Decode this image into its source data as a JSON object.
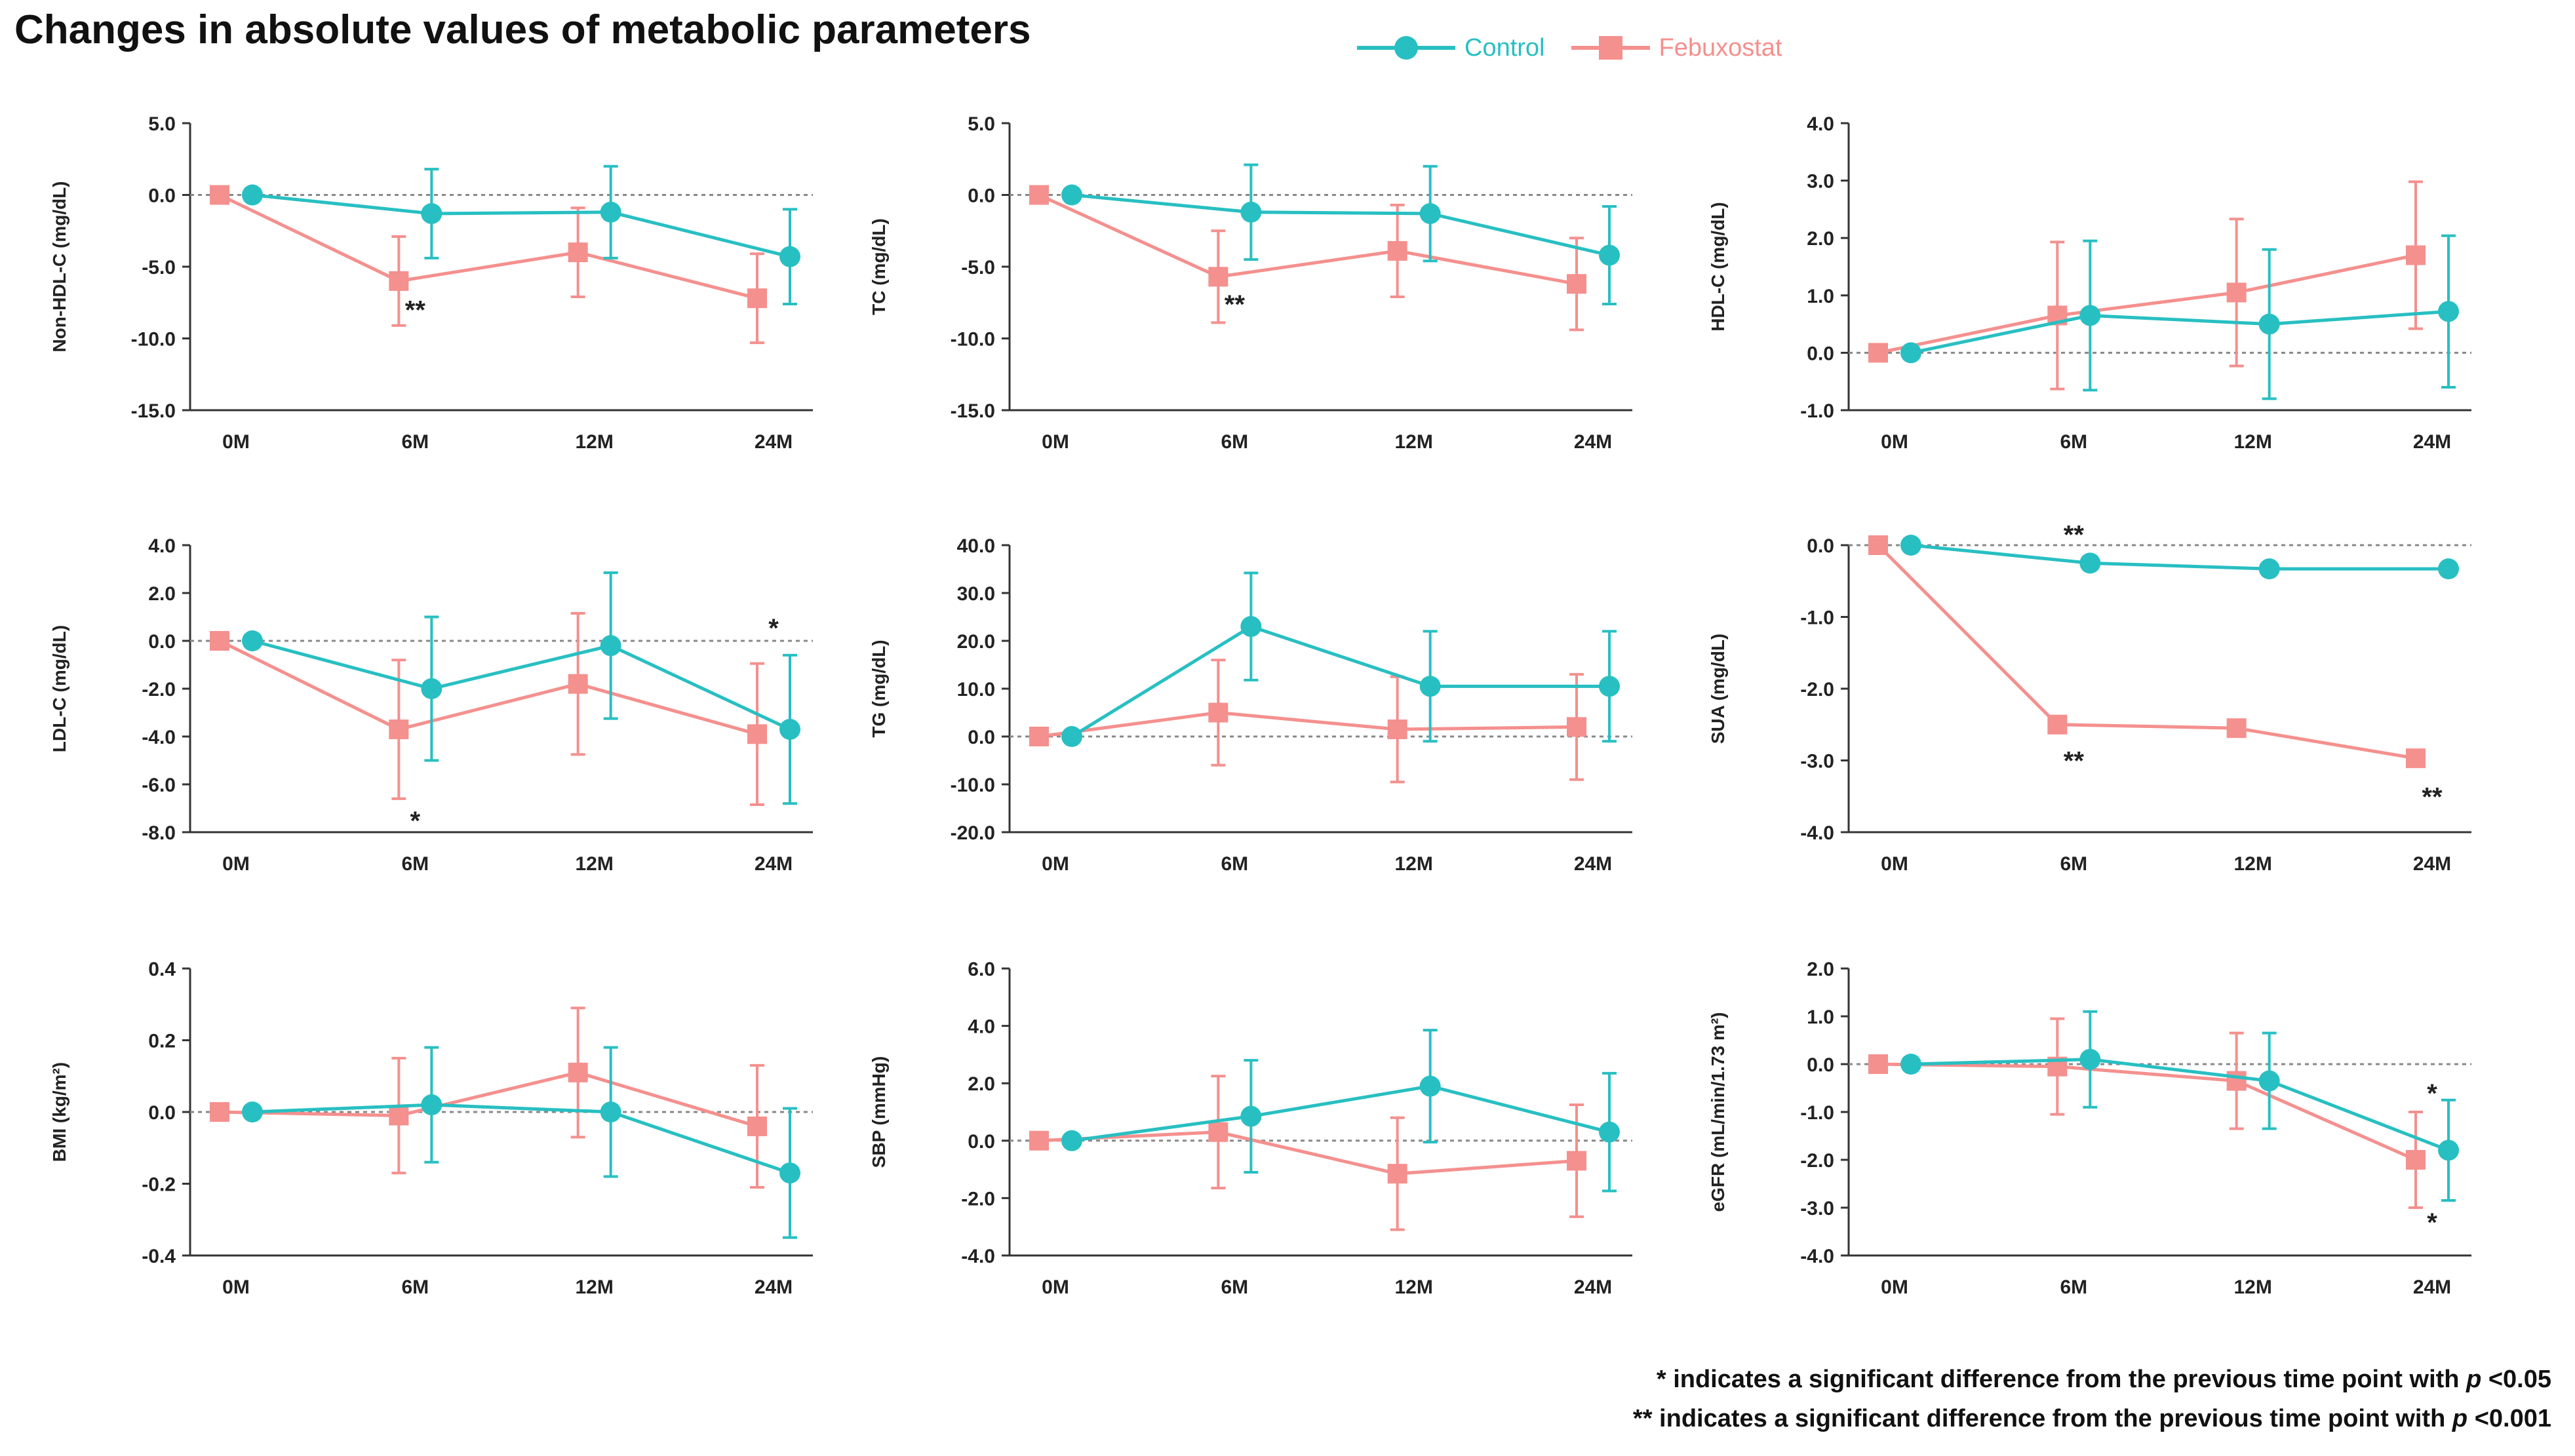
{
  "title": "Changes in absolute values of metabolic parameters",
  "legend": [
    {
      "name": "Control",
      "color": "#28BFC2",
      "marker": "circle"
    },
    {
      "name": "Febuxostat",
      "color": "#F4908E",
      "marker": "square"
    }
  ],
  "footnotes": {
    "single_star": "* indicates a significant difference from the previous time point with",
    "double_star": "** indicates a significant difference from the previous time point with",
    "p_symbol": "p",
    "single_threshold": "<0.05",
    "double_threshold": "<0.001"
  },
  "chart_data": [
    {
      "type": "line",
      "ylabel": "Non-HDL-C (mg/dL)",
      "categories": [
        "0M",
        "6M",
        "12M",
        "24M"
      ],
      "ylim": [
        -15.0,
        5.0
      ],
      "ystep": 5.0,
      "decimals": 1,
      "title": "",
      "xlabel": "",
      "grid": false,
      "reference_line": 0,
      "series": [
        {
          "name": "Control",
          "values": [
            0.0,
            -1.3,
            -1.2,
            -4.3
          ],
          "errors": [
            0.0,
            3.1,
            3.2,
            3.3
          ]
        },
        {
          "name": "Febuxostat",
          "values": [
            0.0,
            -6.0,
            -4.0,
            -7.2
          ],
          "errors": [
            0.0,
            3.1,
            3.1,
            3.1
          ]
        }
      ],
      "annotations": [
        {
          "text": "**",
          "category": "6M",
          "value": -8.0
        }
      ]
    },
    {
      "type": "line",
      "ylabel": "TC (mg/dL)",
      "categories": [
        "0M",
        "6M",
        "12M",
        "24M"
      ],
      "ylim": [
        -15.0,
        5.0
      ],
      "ystep": 5.0,
      "decimals": 1,
      "title": "",
      "xlabel": "",
      "grid": false,
      "reference_line": 0,
      "series": [
        {
          "name": "Control",
          "values": [
            0.0,
            -1.2,
            -1.3,
            -4.2
          ],
          "errors": [
            0.0,
            3.3,
            3.3,
            3.4
          ]
        },
        {
          "name": "Febuxostat",
          "values": [
            0.0,
            -5.7,
            -3.9,
            -6.2
          ],
          "errors": [
            0.0,
            3.2,
            3.2,
            3.2
          ]
        }
      ],
      "annotations": [
        {
          "text": "**",
          "category": "6M",
          "value": -7.6
        }
      ]
    },
    {
      "type": "line",
      "ylabel": "HDL-C (mg/dL)",
      "categories": [
        "0M",
        "6M",
        "12M",
        "24M"
      ],
      "ylim": [
        -1.0,
        4.0
      ],
      "ystep": 1.0,
      "decimals": 1,
      "title": "",
      "xlabel": "",
      "grid": false,
      "reference_line": 0,
      "series": [
        {
          "name": "Control",
          "values": [
            0.0,
            0.65,
            0.5,
            0.72
          ],
          "errors": [
            0.0,
            1.3,
            1.3,
            1.32
          ]
        },
        {
          "name": "Febuxostat",
          "values": [
            0.0,
            0.65,
            1.05,
            1.7
          ],
          "errors": [
            0.0,
            1.28,
            1.28,
            1.28
          ]
        }
      ],
      "annotations": []
    },
    {
      "type": "line",
      "ylabel": "LDL-C (mg/dL)",
      "categories": [
        "0M",
        "6M",
        "12M",
        "24M"
      ],
      "ylim": [
        -8.0,
        4.0
      ],
      "ystep": 2.0,
      "decimals": 1,
      "title": "",
      "xlabel": "",
      "grid": false,
      "reference_line": 0,
      "series": [
        {
          "name": "Control",
          "values": [
            0.0,
            -2.0,
            -0.2,
            -3.7
          ],
          "errors": [
            0.0,
            3.0,
            3.05,
            3.1
          ]
        },
        {
          "name": "Febuxostat",
          "values": [
            0.0,
            -3.7,
            -1.8,
            -3.9
          ],
          "errors": [
            0.0,
            2.9,
            2.95,
            2.95
          ]
        }
      ],
      "annotations": [
        {
          "text": "*",
          "category": "6M",
          "value": -7.5
        },
        {
          "text": "*",
          "category": "24M",
          "value": 0.55
        }
      ]
    },
    {
      "type": "line",
      "ylabel": "TG (mg/dL)",
      "categories": [
        "0M",
        "6M",
        "12M",
        "24M"
      ],
      "ylim": [
        -20.0,
        40.0
      ],
      "ystep": 10.0,
      "decimals": 1,
      "title": "",
      "xlabel": "",
      "grid": false,
      "reference_line": 0,
      "series": [
        {
          "name": "Control",
          "values": [
            0.0,
            23.0,
            10.5,
            10.5
          ],
          "errors": [
            0.0,
            11.2,
            11.5,
            11.5
          ]
        },
        {
          "name": "Febuxostat",
          "values": [
            0.0,
            5.0,
            1.5,
            2.0
          ],
          "errors": [
            0.0,
            11.0,
            11.0,
            11.0
          ]
        }
      ],
      "annotations": []
    },
    {
      "type": "line",
      "ylabel": "SUA (mg/dL)",
      "categories": [
        "0M",
        "6M",
        "12M",
        "24M"
      ],
      "ylim": [
        -4.0,
        0.0
      ],
      "ystep": 1.0,
      "decimals": 1,
      "title": "",
      "xlabel": "",
      "grid": false,
      "reference_line": 0,
      "series": [
        {
          "name": "Control",
          "values": [
            0.0,
            -0.25,
            -0.33,
            -0.33
          ],
          "errors": [
            0.0,
            0.07,
            0.07,
            0.07
          ]
        },
        {
          "name": "Febuxostat",
          "values": [
            0.0,
            -2.5,
            -2.55,
            -2.97
          ],
          "errors": [
            0.0,
            0.07,
            0.07,
            0.07
          ]
        }
      ],
      "annotations": [
        {
          "text": "**",
          "category": "6M",
          "value": 0.15
        },
        {
          "text": "**",
          "category": "6M",
          "value": -3.0
        },
        {
          "text": "**",
          "category": "24M",
          "value": -3.5
        }
      ]
    },
    {
      "type": "line",
      "ylabel": "BMI (kg/m²)",
      "categories": [
        "0M",
        "6M",
        "12M",
        "24M"
      ],
      "ylim": [
        -0.4,
        0.4
      ],
      "ystep": 0.2,
      "decimals": 1,
      "title": "",
      "xlabel": "",
      "grid": false,
      "reference_line": 0,
      "series": [
        {
          "name": "Control",
          "values": [
            0.0,
            0.02,
            0.0,
            -0.17
          ],
          "errors": [
            0.0,
            0.16,
            0.18,
            0.18
          ]
        },
        {
          "name": "Febuxostat",
          "values": [
            0.0,
            -0.01,
            0.11,
            -0.04
          ],
          "errors": [
            0.0,
            0.16,
            0.18,
            0.17
          ]
        }
      ],
      "annotations": []
    },
    {
      "type": "line",
      "ylabel": "SBP (mmHg)",
      "categories": [
        "0M",
        "6M",
        "12M",
        "24M"
      ],
      "ylim": [
        -4.0,
        6.0
      ],
      "ystep": 2.0,
      "decimals": 1,
      "title": "",
      "xlabel": "",
      "grid": false,
      "reference_line": 0,
      "series": [
        {
          "name": "Control",
          "values": [
            0.0,
            0.85,
            1.9,
            0.3
          ],
          "errors": [
            0.0,
            1.95,
            1.95,
            2.05
          ]
        },
        {
          "name": "Febuxostat",
          "values": [
            0.0,
            0.3,
            -1.15,
            -0.7
          ],
          "errors": [
            0.0,
            1.95,
            1.95,
            1.95
          ]
        }
      ],
      "annotations": []
    },
    {
      "type": "line",
      "ylabel": "eGFR (mL/min/1.73 m²)",
      "categories": [
        "0M",
        "6M",
        "12M",
        "24M"
      ],
      "ylim": [
        -4.0,
        2.0
      ],
      "ystep": 1.0,
      "decimals": 1,
      "title": "",
      "xlabel": "",
      "grid": false,
      "reference_line": 0,
      "series": [
        {
          "name": "Control",
          "values": [
            0.0,
            0.1,
            -0.35,
            -1.8
          ],
          "errors": [
            0.0,
            1.0,
            1.0,
            1.05
          ]
        },
        {
          "name": "Febuxostat",
          "values": [
            0.0,
            -0.05,
            -0.35,
            -2.0
          ],
          "errors": [
            0.0,
            1.0,
            1.0,
            1.0
          ]
        }
      ],
      "annotations": [
        {
          "text": "*",
          "category": "24M",
          "value": -0.6
        },
        {
          "text": "*",
          "category": "24M",
          "value": -3.3
        }
      ]
    }
  ]
}
